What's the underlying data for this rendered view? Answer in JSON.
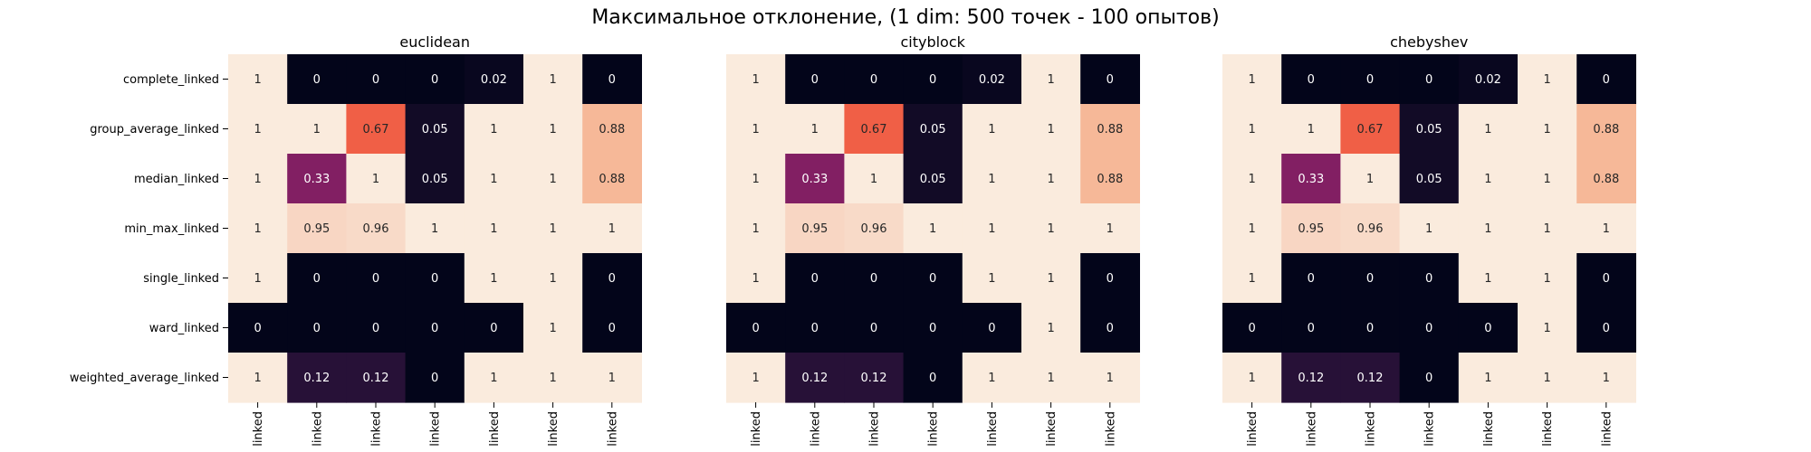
{
  "title": "Максимальное отклонение, (1 dim: 500 точек - 100 опытов)",
  "chart_data": {
    "type": "heatmap",
    "title": "Максимальное отклонение, (1 dim: 500 точек - 100 опытов)",
    "rows": [
      "complete_linked",
      "group_average_linked",
      "median_linked",
      "min_max_linked",
      "single_linked",
      "ward_linked",
      "weighted_average_linked"
    ],
    "column_tick_labels": [
      "linked",
      "linked",
      "linked",
      "linked",
      "linked",
      "linked",
      "linked"
    ],
    "value_range": [
      0,
      1
    ],
    "colormap": "rocket",
    "panels": [
      {
        "name": "euclidean",
        "values": [
          [
            1,
            0,
            0,
            0,
            0.02,
            1,
            0
          ],
          [
            1,
            1,
            0.67,
            0.05,
            1,
            1,
            0.88
          ],
          [
            1,
            0.33,
            1,
            0.05,
            1,
            1,
            0.88
          ],
          [
            1,
            0.95,
            0.96,
            1,
            1,
            1,
            1
          ],
          [
            1,
            0,
            0,
            0,
            1,
            1,
            0
          ],
          [
            0,
            0,
            0,
            0,
            0,
            1,
            0
          ],
          [
            1,
            0.12,
            0.12,
            0,
            1,
            1,
            1
          ]
        ]
      },
      {
        "name": "cityblock",
        "values": [
          [
            1,
            0,
            0,
            0,
            0.02,
            1,
            0
          ],
          [
            1,
            1,
            0.67,
            0.05,
            1,
            1,
            0.88
          ],
          [
            1,
            0.33,
            1,
            0.05,
            1,
            1,
            0.88
          ],
          [
            1,
            0.95,
            0.96,
            1,
            1,
            1,
            1
          ],
          [
            1,
            0,
            0,
            0,
            1,
            1,
            0
          ],
          [
            0,
            0,
            0,
            0,
            0,
            1,
            0
          ],
          [
            1,
            0.12,
            0.12,
            0,
            1,
            1,
            1
          ]
        ]
      },
      {
        "name": "chebyshev",
        "values": [
          [
            1,
            0,
            0,
            0,
            0.02,
            1,
            0
          ],
          [
            1,
            1,
            0.67,
            0.05,
            1,
            1,
            0.88
          ],
          [
            1,
            0.33,
            1,
            0.05,
            1,
            1,
            0.88
          ],
          [
            1,
            0.95,
            0.96,
            1,
            1,
            1,
            1
          ],
          [
            1,
            0,
            0,
            0,
            1,
            1,
            0
          ],
          [
            0,
            0,
            0,
            0,
            0,
            1,
            0
          ],
          [
            1,
            0.12,
            0.12,
            0,
            1,
            1,
            1
          ]
        ]
      }
    ]
  }
}
